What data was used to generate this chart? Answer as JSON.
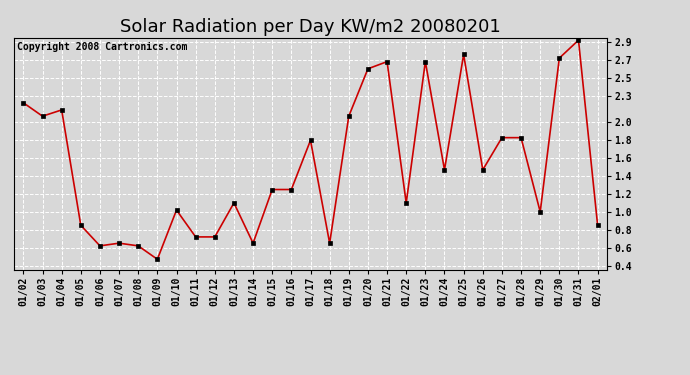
{
  "title": "Solar Radiation per Day KW/m2 20080201",
  "copyright": "Copyright 2008 Cartronics.com",
  "dates": [
    "01/02",
    "01/03",
    "01/04",
    "01/05",
    "01/06",
    "01/07",
    "01/08",
    "01/09",
    "01/10",
    "01/11",
    "01/12",
    "01/13",
    "01/14",
    "01/15",
    "01/16",
    "01/17",
    "01/18",
    "01/19",
    "01/20",
    "01/21",
    "01/22",
    "01/23",
    "01/24",
    "01/25",
    "01/26",
    "01/27",
    "01/28",
    "01/29",
    "01/30",
    "01/31",
    "02/01"
  ],
  "values": [
    2.22,
    2.07,
    2.14,
    0.85,
    0.62,
    0.65,
    0.62,
    0.47,
    1.02,
    0.72,
    0.72,
    1.1,
    0.65,
    1.25,
    1.25,
    1.8,
    0.65,
    2.07,
    2.6,
    2.68,
    1.1,
    2.68,
    1.47,
    2.76,
    1.47,
    1.83,
    1.83,
    1.0,
    2.72,
    2.92,
    0.85
  ],
  "ylim_min": 0.35,
  "ylim_max": 2.95,
  "yticks": [
    0.4,
    0.6,
    0.8,
    1.0,
    1.2,
    1.4,
    1.6,
    1.8,
    2.0,
    2.3,
    2.5,
    2.7,
    2.9
  ],
  "line_color": "#cc0000",
  "marker_color": "#000000",
  "bg_color": "#d8d8d8",
  "grid_color": "#ffffff",
  "title_fontsize": 13,
  "copyright_fontsize": 7,
  "tick_fontsize": 7
}
